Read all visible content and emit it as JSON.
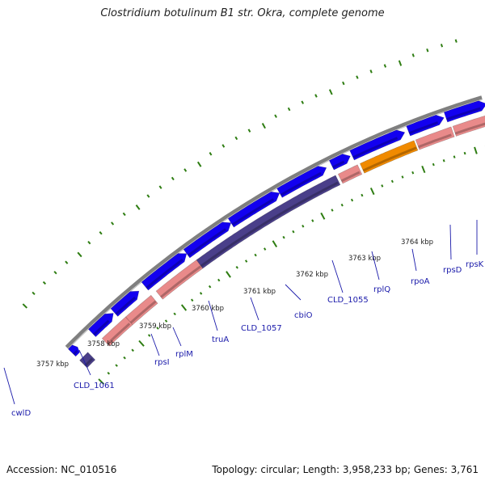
{
  "header": {
    "title": "Clostridium botulinum B1 str. Okra, complete genome"
  },
  "footer": {
    "accession": "Accession: NC_010516",
    "topology": "Topology: circular; Length: 3,958,233 bp; Genes: 3,761"
  },
  "colors": {
    "backbone": "#7f7f7f",
    "tick": "#2e7d12",
    "cds": "#1200f0",
    "gene": "#e98a8a",
    "gene_dark": "#4a3f8a",
    "special": "#f08a00",
    "green_feature": "#5a8a1e",
    "label": "#1a1aaa",
    "leader": "#1a1aaa"
  },
  "scale_labels": [
    "3757 kbp",
    "3758 kbp",
    "3759 kbp",
    "3760 kbp",
    "3761 kbp",
    "3762 kbp",
    "3763 kbp",
    "3764 kbp"
  ],
  "gene_labels": [
    "cwlD",
    "CLD_1061",
    "rpsI",
    "rplM",
    "truA",
    "CLD_1057",
    "cbiO",
    "CLD_1055",
    "rplQ",
    "rpoA",
    "rpsD",
    "rpsK"
  ]
}
